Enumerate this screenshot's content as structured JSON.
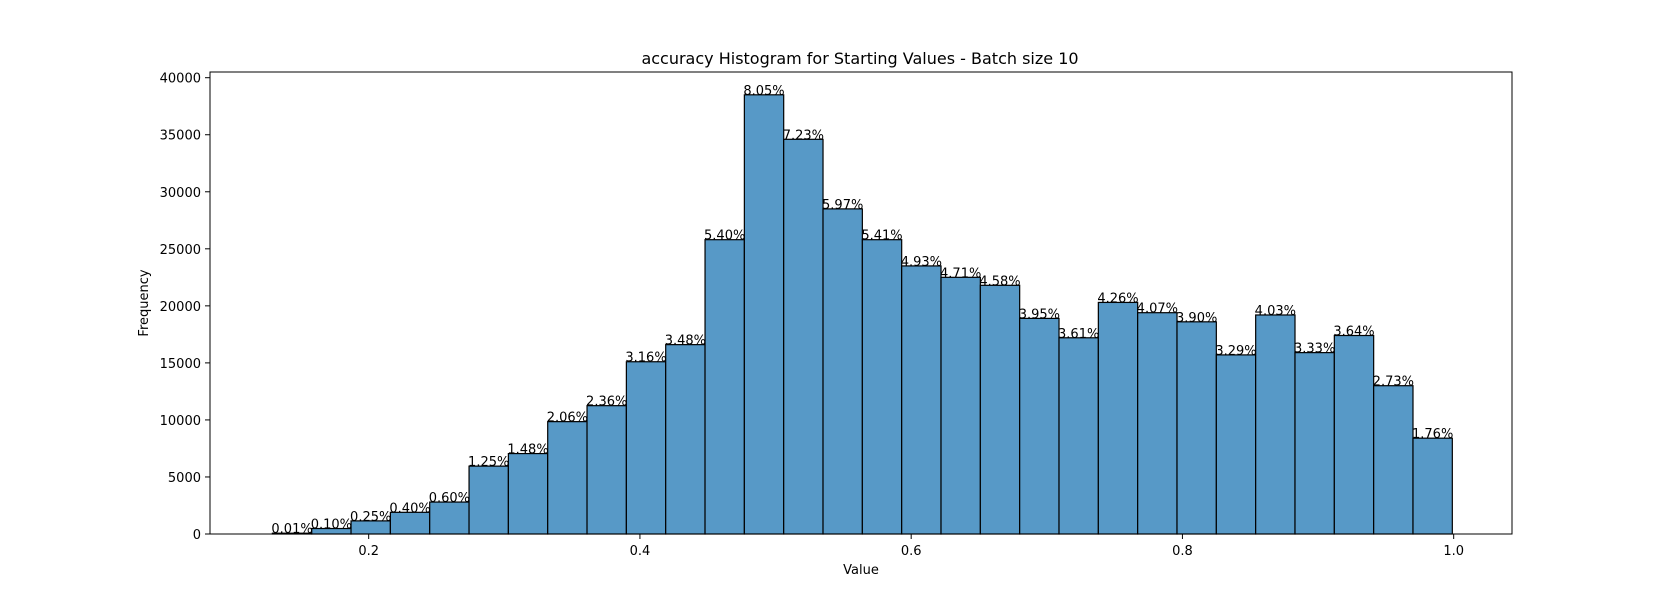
{
  "chart_data": {
    "type": "bar",
    "title": "accuracy Histogram for Starting Values - Batch size 10",
    "xlabel": "Value",
    "ylabel": "Frequency",
    "xlim": [
      0.083,
      1.043
    ],
    "ylim": [
      0,
      40500
    ],
    "xticks": [
      0.2,
      0.4,
      0.6,
      0.8,
      1.0
    ],
    "xtick_labels": [
      "0.2",
      "0.4",
      "0.6",
      "0.8",
      "1.0"
    ],
    "yticks": [
      0,
      5000,
      10000,
      15000,
      20000,
      25000,
      30000,
      35000,
      40000
    ],
    "ytick_labels": [
      "0",
      "5000",
      "10000",
      "15000",
      "20000",
      "25000",
      "30000",
      "35000",
      "40000"
    ],
    "bin_edges": [
      0.129,
      0.158,
      0.187,
      0.216,
      0.245,
      0.274,
      0.303,
      0.332,
      0.361,
      0.39,
      0.419,
      0.448,
      0.477,
      0.506,
      0.535,
      0.564,
      0.593,
      0.622,
      0.651,
      0.68,
      0.709,
      0.738,
      0.767,
      0.796,
      0.825,
      0.854,
      0.883,
      0.912,
      0.941,
      0.97,
      0.999
    ],
    "values": [
      70,
      480,
      1150,
      1900,
      2800,
      5950,
      7050,
      9850,
      11250,
      15100,
      16600,
      25800,
      38500,
      34600,
      28500,
      25800,
      23500,
      22500,
      21800,
      18900,
      17200,
      20300,
      19400,
      18600,
      15700,
      19200,
      15900,
      17400,
      13000,
      8400
    ],
    "labels": [
      "0.01%",
      "0.10%",
      "0.25%",
      "0.40%",
      "0.60%",
      "1.25%",
      "1.48%",
      "2.06%",
      "2.36%",
      "3.16%",
      "3.48%",
      "5.40%",
      "8.05%",
      "7.23%",
      "5.97%",
      "5.41%",
      "4.93%",
      "4.71%",
      "4.58%",
      "3.95%",
      "3.61%",
      "4.26%",
      "4.07%",
      "3.90%",
      "3.29%",
      "4.03%",
      "3.33%",
      "3.64%",
      "2.73%",
      "1.76%"
    ],
    "bar_color": "#5799c7",
    "edge_color": "#000000",
    "grid": false,
    "legend": false
  }
}
